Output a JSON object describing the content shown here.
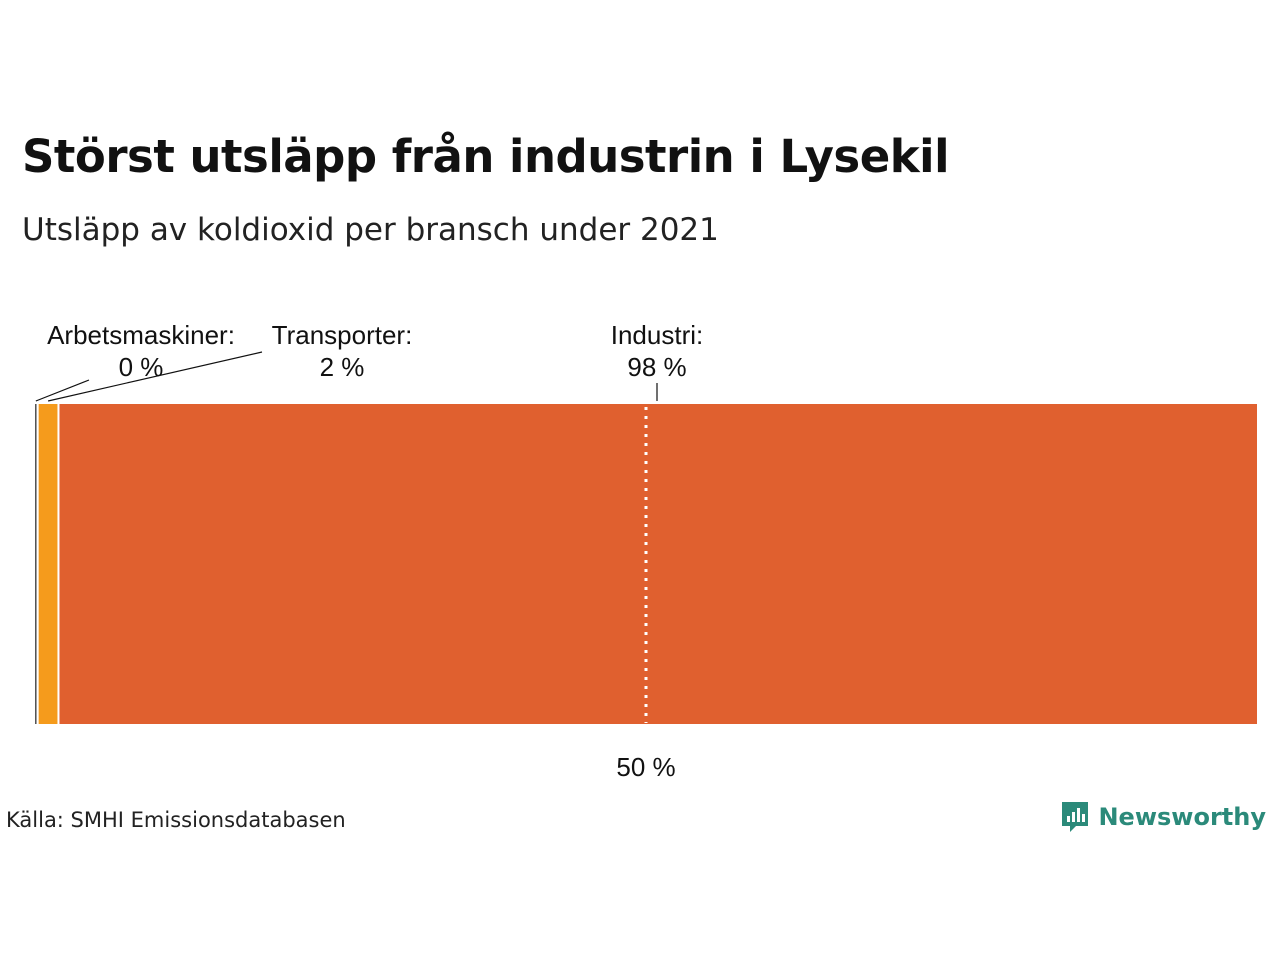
{
  "header": {
    "title": "Störst utsläpp från industrin i Lysekil",
    "subtitle": "Utsläpp av koldioxid per bransch under 2021"
  },
  "footer": {
    "source": "Källa: SMHI Emissionsdatabasen",
    "brand": "Newsworthy",
    "brand_icon": "newsworthy-logo-icon",
    "brand_color": "#2b8a7a"
  },
  "chart_data": {
    "type": "bar",
    "orientation": "horizontal-stacked-100",
    "xlim": [
      0,
      100
    ],
    "series": [
      {
        "name": "Arbetsmaskiner",
        "label": "Arbetsmaskiner:",
        "value_label": "0 %",
        "value": 0.3,
        "color": "#555555"
      },
      {
        "name": "Transporter",
        "label": "Transporter:",
        "value_label": "2 %",
        "value": 1.7,
        "color": "#f59b1c"
      },
      {
        "name": "Industri",
        "label": "Industri:",
        "value_label": "98 %",
        "value": 98,
        "color": "#e0602f"
      }
    ],
    "reference_line": {
      "value": 50,
      "label": "50 %",
      "style": "dotted"
    },
    "xlabel": "",
    "ylabel": "",
    "grid": false,
    "legend": "none"
  }
}
